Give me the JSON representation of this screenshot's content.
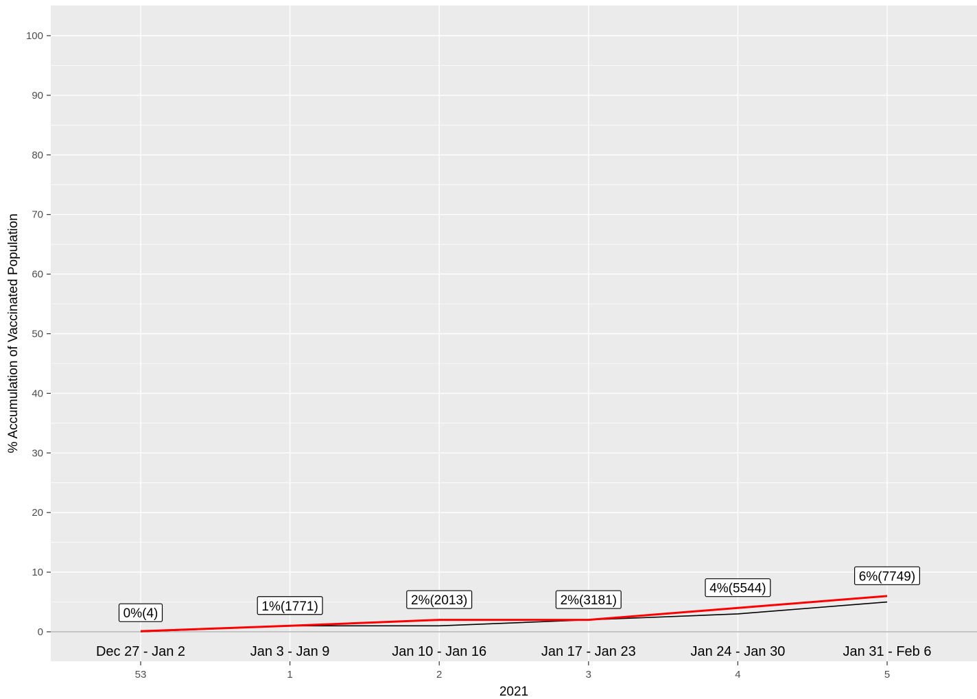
{
  "chart_data": {
    "type": "line",
    "xlabel": "2021",
    "ylabel": "% Accumulation of Vaccinated Population",
    "ylim": [
      0,
      100
    ],
    "yticks": [
      0,
      10,
      20,
      30,
      40,
      50,
      60,
      70,
      80,
      90,
      100
    ],
    "categories": [
      "53",
      "1",
      "2",
      "3",
      "4",
      "5"
    ],
    "date_ranges": [
      "Dec 27 - Jan 2",
      "Jan 3 - Jan 9",
      "Jan 10 - Jan 16",
      "Jan 17 - Jan 23",
      "Jan 24 - Jan 30",
      "Jan 31 - Feb 6"
    ],
    "series": [
      {
        "color": "#ff0000",
        "values": [
          0.1,
          1.0,
          2.0,
          2.0,
          4.0,
          6.0
        ]
      },
      {
        "color": "#000000",
        "values": [
          0.0,
          1.0,
          1.0,
          2.0,
          3.0,
          5.0
        ]
      }
    ],
    "data_labels": [
      "0%(4)",
      "1%(1771)",
      "2%(2013)",
      "2%(3181)",
      "4%(5544)",
      "6%(7749)"
    ],
    "label_positions_y": [
      3.2,
      4.4,
      5.4,
      5.4,
      7.4,
      9.4
    ],
    "grid": true,
    "panel_background": "#ebebeb",
    "grid_color": "#ffffff"
  }
}
